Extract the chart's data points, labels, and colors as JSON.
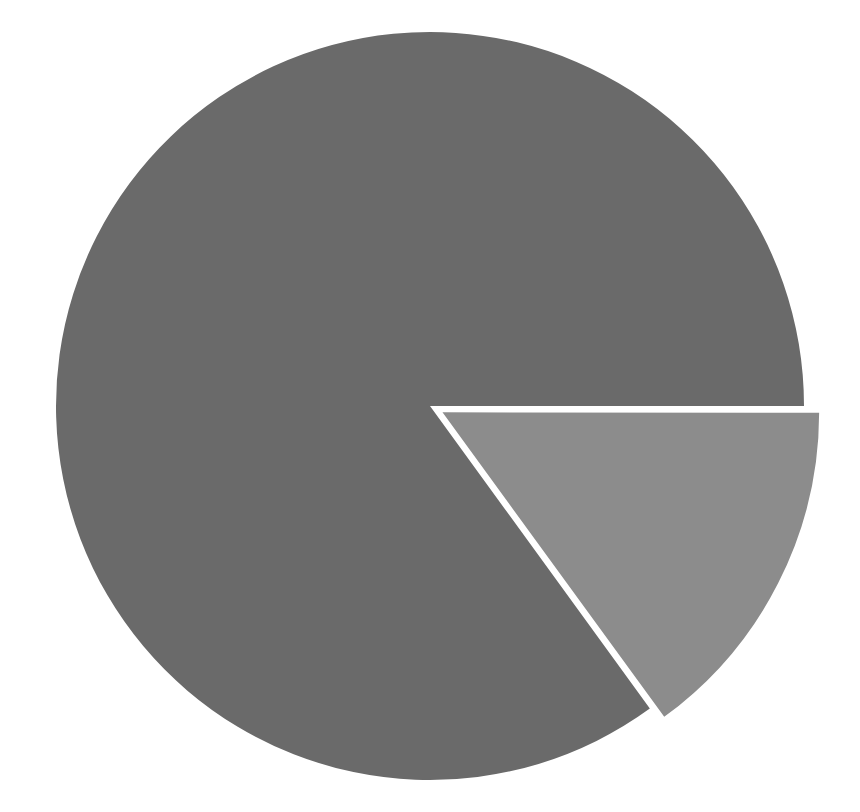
{
  "chart_data": {
    "type": "pie",
    "categories": [
      null,
      null
    ],
    "values": [
      15,
      85
    ],
    "colors": [
      "#8c8c8c",
      "#6a6a6a"
    ],
    "legend": false
  }
}
